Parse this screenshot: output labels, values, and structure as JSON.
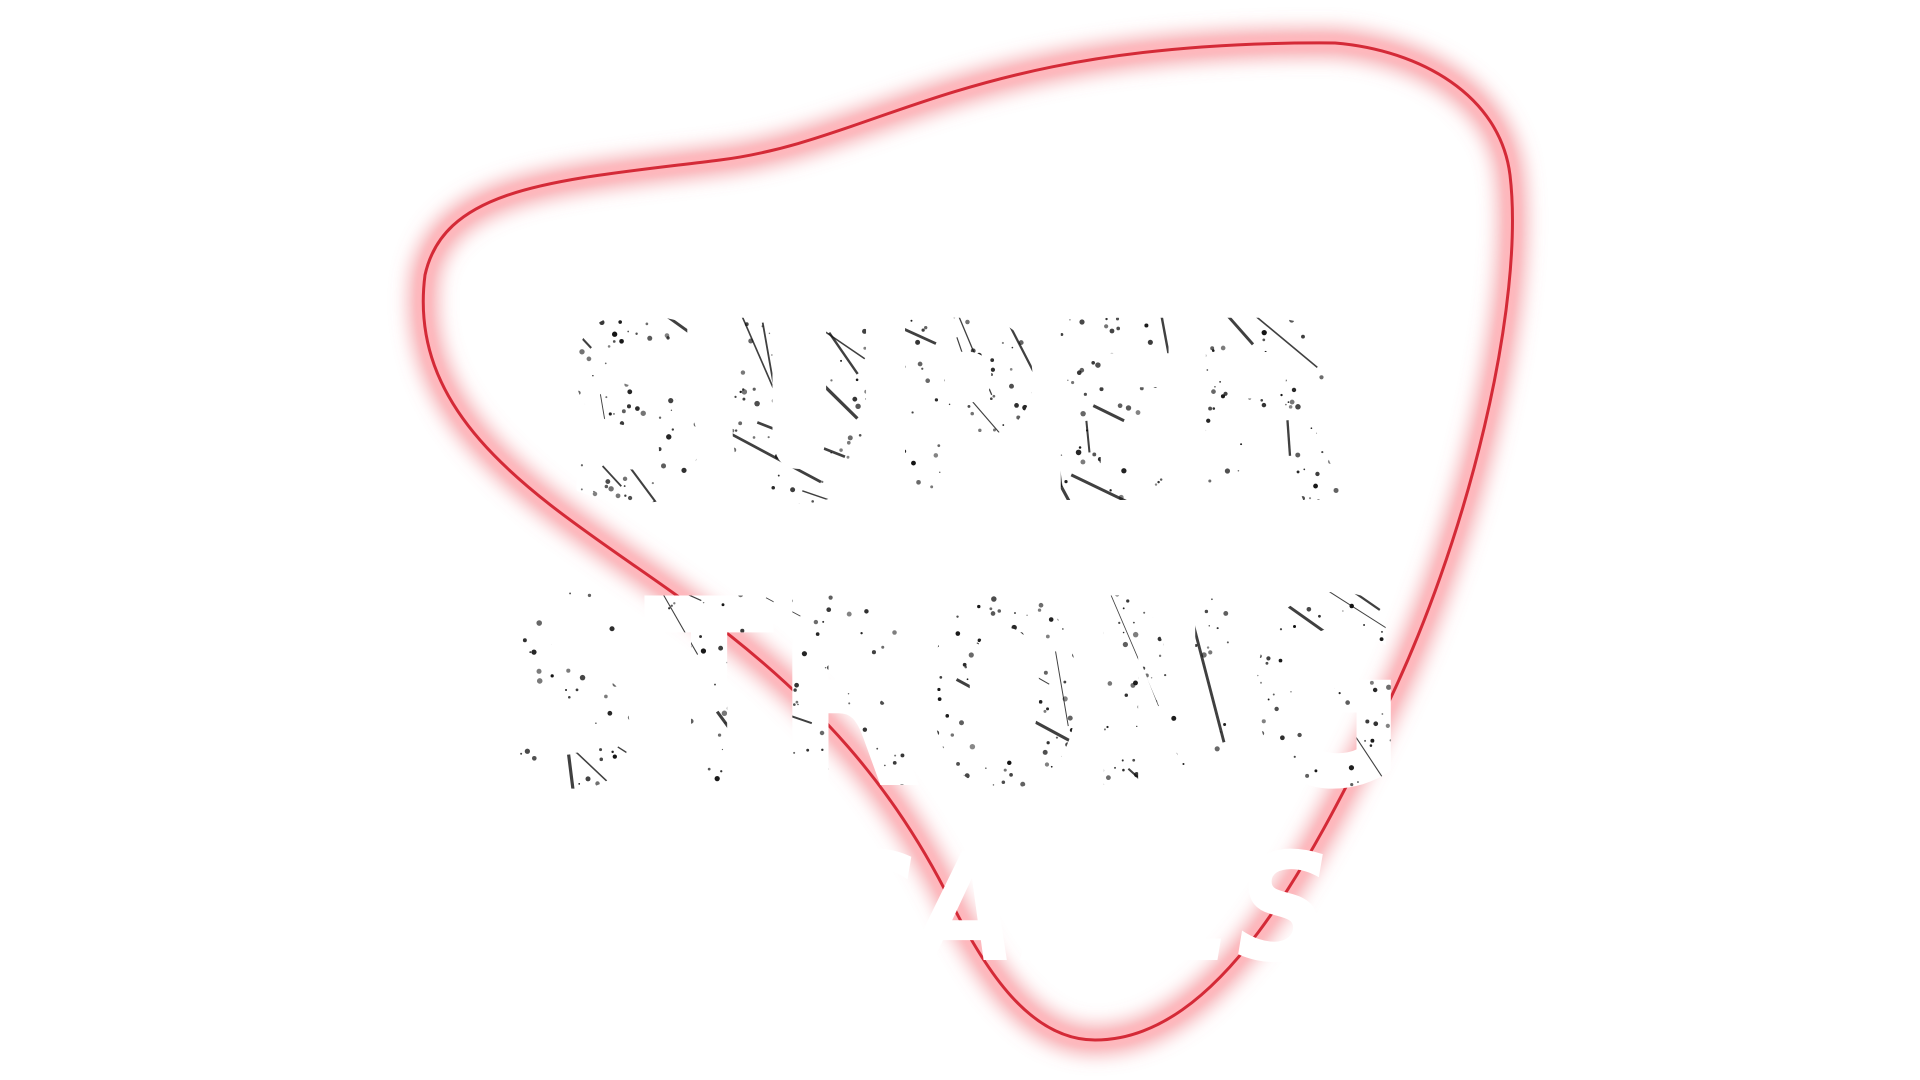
{
  "logo": {
    "line1": "SUPER",
    "line2": "STRONG",
    "line3": "GAMES"
  },
  "colors": {
    "background": "#ffffff",
    "neon_glow": "#f06e78",
    "neon_core": "#d42a37",
    "letter_fill": "#ffffff",
    "grunge_ink": "#111111"
  }
}
